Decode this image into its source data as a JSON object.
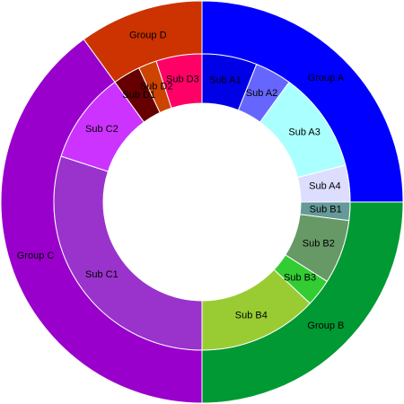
{
  "chart_data": {
    "type": "sunburst",
    "groups": [
      {
        "name": "Group A",
        "color": "#0000ff",
        "value": 25,
        "children": [
          {
            "name": "Sub A1",
            "color": "#0000e6",
            "value": 6
          },
          {
            "name": "Sub A2",
            "color": "#6666ff",
            "value": 4
          },
          {
            "name": "Sub A3",
            "color": "#aaffff",
            "value": 11
          },
          {
            "name": "Sub A4",
            "color": "#ddddff",
            "value": 4
          }
        ]
      },
      {
        "name": "Group B",
        "color": "#009933",
        "value": 25,
        "children": [
          {
            "name": "Sub B1",
            "color": "#669999",
            "value": 2
          },
          {
            "name": "Sub B2",
            "color": "#669966",
            "value": 7
          },
          {
            "name": "Sub B3",
            "color": "#33cc33",
            "value": 3
          },
          {
            "name": "Sub B4",
            "color": "#99cc33",
            "value": 13
          }
        ]
      },
      {
        "name": "Group C",
        "color": "#9900cc",
        "value": 40,
        "children": [
          {
            "name": "Sub C1",
            "color": "#9933cc",
            "value": 30
          },
          {
            "name": "Sub C2",
            "color": "#cc33ff",
            "value": 10
          }
        ]
      },
      {
        "name": "Group D",
        "color": "#cc3300",
        "value": 10,
        "children": [
          {
            "name": "Sub D1",
            "color": "#660000",
            "value": 3
          },
          {
            "name": "Sub D2",
            "color": "#cc4400",
            "value": 2
          },
          {
            "name": "Sub D3",
            "color": "#ff0066",
            "value": 5
          }
        ]
      }
    ]
  }
}
